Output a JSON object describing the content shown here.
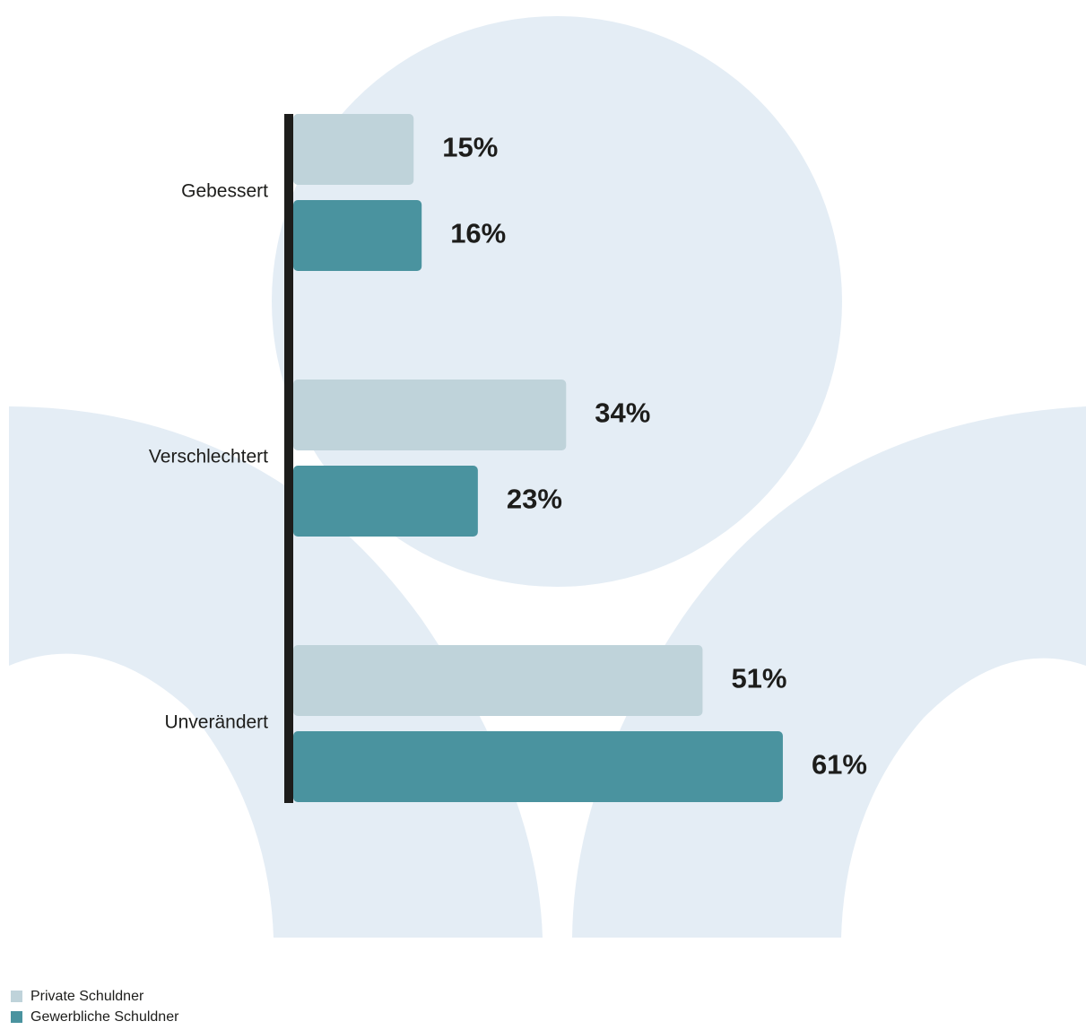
{
  "chart_data": {
    "type": "bar",
    "orientation": "horizontal",
    "categories": [
      "Gebessert",
      "Verschlechtert",
      "Unverändert"
    ],
    "series": [
      {
        "name": "Private Schuldner",
        "color": "#bfd3da",
        "values": [
          15,
          34,
          51
        ],
        "value_labels": [
          "15%",
          "34%",
          "51%"
        ]
      },
      {
        "name": "Gewerbliche Schuldner",
        "color": "#4a939f",
        "values": [
          16,
          23,
          61
        ],
        "value_labels": [
          "16%",
          "23%",
          "61%"
        ]
      }
    ]
  }
}
